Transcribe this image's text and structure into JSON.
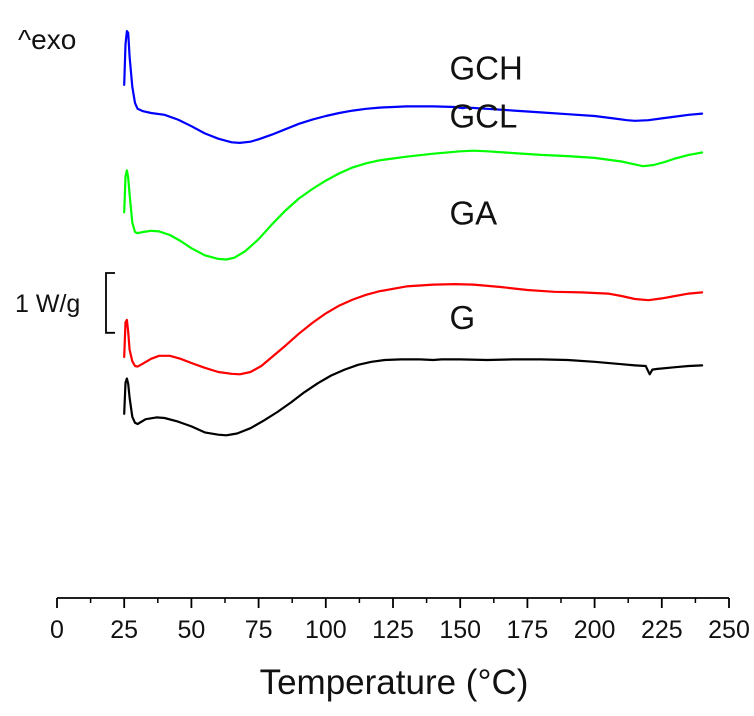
{
  "chart_data": {
    "type": "line",
    "title": "",
    "xlabel": "Temperature (°C)",
    "ylabel": "",
    "corner_label": "^exo",
    "xlim": [
      0,
      250
    ],
    "xticks": [
      0,
      25,
      50,
      75,
      100,
      125,
      150,
      175,
      200,
      225,
      250
    ],
    "ylim": [
      0,
      10
    ],
    "grid": false,
    "scale_bar": {
      "label": "1 W/g",
      "length": 1
    },
    "series": [
      {
        "name": "GCH",
        "color": "#0000ff",
        "points": [
          [
            25,
            8.58
          ],
          [
            25.5,
            9.26
          ],
          [
            26,
            9.48
          ],
          [
            26.5,
            9.45
          ],
          [
            27,
            9.05
          ],
          [
            28,
            8.55
          ],
          [
            29,
            8.28
          ],
          [
            30,
            8.18
          ],
          [
            32,
            8.14
          ],
          [
            35,
            8.11
          ],
          [
            40,
            8.08
          ],
          [
            45,
            8.0
          ],
          [
            50,
            7.89
          ],
          [
            55,
            7.77
          ],
          [
            60,
            7.68
          ],
          [
            65,
            7.62
          ],
          [
            68,
            7.61
          ],
          [
            72,
            7.63
          ],
          [
            75,
            7.67
          ],
          [
            80,
            7.75
          ],
          [
            85,
            7.84
          ],
          [
            90,
            7.93
          ],
          [
            95,
            8.0
          ],
          [
            100,
            8.06
          ],
          [
            105,
            8.11
          ],
          [
            110,
            8.15
          ],
          [
            115,
            8.18
          ],
          [
            120,
            8.2
          ],
          [
            125,
            8.21
          ],
          [
            130,
            8.22
          ],
          [
            140,
            8.22
          ],
          [
            148,
            8.21
          ],
          [
            151,
            8.19
          ],
          [
            152,
            8.2
          ],
          [
            153,
            8.2
          ],
          [
            160,
            8.18
          ],
          [
            170,
            8.15
          ],
          [
            180,
            8.12
          ],
          [
            190,
            8.09
          ],
          [
            200,
            8.06
          ],
          [
            207,
            8.02
          ],
          [
            212,
            7.99
          ],
          [
            215,
            7.98
          ],
          [
            220,
            7.99
          ],
          [
            225,
            8.02
          ],
          [
            230,
            8.05
          ],
          [
            235,
            8.08
          ],
          [
            240,
            8.1
          ]
        ]
      },
      {
        "name": "GCL",
        "color": "#00ff00",
        "points": [
          [
            25,
            6.45
          ],
          [
            25.5,
            7.05
          ],
          [
            26,
            7.15
          ],
          [
            26.5,
            7.03
          ],
          [
            27,
            6.75
          ],
          [
            28,
            6.28
          ],
          [
            29,
            6.12
          ],
          [
            30,
            6.1
          ],
          [
            32,
            6.12
          ],
          [
            35,
            6.14
          ],
          [
            38,
            6.13
          ],
          [
            42,
            6.07
          ],
          [
            46,
            5.97
          ],
          [
            50,
            5.85
          ],
          [
            55,
            5.73
          ],
          [
            60,
            5.67
          ],
          [
            63,
            5.66
          ],
          [
            66,
            5.69
          ],
          [
            70,
            5.8
          ],
          [
            75,
            6.0
          ],
          [
            80,
            6.25
          ],
          [
            85,
            6.48
          ],
          [
            90,
            6.68
          ],
          [
            95,
            6.84
          ],
          [
            100,
            6.98
          ],
          [
            105,
            7.1
          ],
          [
            110,
            7.2
          ],
          [
            115,
            7.27
          ],
          [
            120,
            7.32
          ],
          [
            125,
            7.35
          ],
          [
            130,
            7.38
          ],
          [
            140,
            7.43
          ],
          [
            150,
            7.47
          ],
          [
            155,
            7.48
          ],
          [
            160,
            7.47
          ],
          [
            170,
            7.44
          ],
          [
            180,
            7.41
          ],
          [
            190,
            7.39
          ],
          [
            200,
            7.36
          ],
          [
            210,
            7.3
          ],
          [
            215,
            7.25
          ],
          [
            218,
            7.22
          ],
          [
            222,
            7.24
          ],
          [
            226,
            7.29
          ],
          [
            230,
            7.35
          ],
          [
            235,
            7.41
          ],
          [
            240,
            7.45
          ]
        ]
      },
      {
        "name": "G",
        "color": "#ff0000",
        "points": [
          [
            25,
            4.03
          ],
          [
            25.5,
            4.61
          ],
          [
            26,
            4.65
          ],
          [
            26.5,
            4.45
          ],
          [
            27,
            4.15
          ],
          [
            28,
            3.96
          ],
          [
            29,
            3.88
          ],
          [
            30,
            3.87
          ],
          [
            32,
            3.92
          ],
          [
            35,
            4.0
          ],
          [
            38,
            4.05
          ],
          [
            42,
            4.05
          ],
          [
            46,
            4.0
          ],
          [
            50,
            3.93
          ],
          [
            55,
            3.85
          ],
          [
            60,
            3.78
          ],
          [
            65,
            3.75
          ],
          [
            68,
            3.74
          ],
          [
            72,
            3.78
          ],
          [
            76,
            3.88
          ],
          [
            80,
            4.03
          ],
          [
            85,
            4.22
          ],
          [
            90,
            4.42
          ],
          [
            95,
            4.6
          ],
          [
            100,
            4.76
          ],
          [
            105,
            4.89
          ],
          [
            110,
            4.99
          ],
          [
            115,
            5.07
          ],
          [
            120,
            5.13
          ],
          [
            130,
            5.21
          ],
          [
            140,
            5.24
          ],
          [
            148,
            5.25
          ],
          [
            155,
            5.24
          ],
          [
            165,
            5.2
          ],
          [
            175,
            5.15
          ],
          [
            185,
            5.12
          ],
          [
            195,
            5.11
          ],
          [
            205,
            5.09
          ],
          [
            210,
            5.05
          ],
          [
            215,
            5.0
          ],
          [
            220,
            4.98
          ],
          [
            225,
            5.01
          ],
          [
            230,
            5.05
          ],
          [
            235,
            5.09
          ],
          [
            240,
            5.11
          ]
        ]
      },
      {
        "name": "",
        "color": "#000000",
        "points": [
          [
            25,
            3.08
          ],
          [
            25.5,
            3.6
          ],
          [
            26,
            3.67
          ],
          [
            26.5,
            3.58
          ],
          [
            27,
            3.35
          ],
          [
            28,
            3.03
          ],
          [
            29,
            2.93
          ],
          [
            30,
            2.91
          ],
          [
            33,
            2.99
          ],
          [
            37,
            3.02
          ],
          [
            40,
            3.01
          ],
          [
            45,
            2.95
          ],
          [
            50,
            2.87
          ],
          [
            55,
            2.77
          ],
          [
            60,
            2.73
          ],
          [
            63,
            2.72
          ],
          [
            67,
            2.75
          ],
          [
            72,
            2.84
          ],
          [
            77,
            2.97
          ],
          [
            82,
            3.11
          ],
          [
            87,
            3.27
          ],
          [
            92,
            3.44
          ],
          [
            97,
            3.59
          ],
          [
            102,
            3.72
          ],
          [
            107,
            3.82
          ],
          [
            112,
            3.9
          ],
          [
            117,
            3.95
          ],
          [
            122,
            3.98
          ],
          [
            128,
            3.99
          ],
          [
            135,
            3.99
          ],
          [
            140,
            3.98
          ],
          [
            143,
            3.99
          ],
          [
            150,
            3.99
          ],
          [
            160,
            3.98
          ],
          [
            170,
            3.99
          ],
          [
            180,
            3.99
          ],
          [
            190,
            3.98
          ],
          [
            200,
            3.95
          ],
          [
            210,
            3.91
          ],
          [
            215,
            3.89
          ],
          [
            219,
            3.88
          ],
          [
            220.5,
            3.74
          ],
          [
            221.5,
            3.82
          ],
          [
            223,
            3.83
          ],
          [
            230,
            3.86
          ],
          [
            235,
            3.88
          ],
          [
            240,
            3.89
          ]
        ]
      }
    ],
    "annotations": [
      {
        "text": "GCH",
        "x": 146,
        "y": 8.67
      },
      {
        "text": "GCL",
        "x": 146,
        "y": 7.87
      },
      {
        "text": "GA",
        "x": 146,
        "y": 6.25
      },
      {
        "text": "G",
        "x": 146,
        "y": 4.5
      }
    ]
  }
}
